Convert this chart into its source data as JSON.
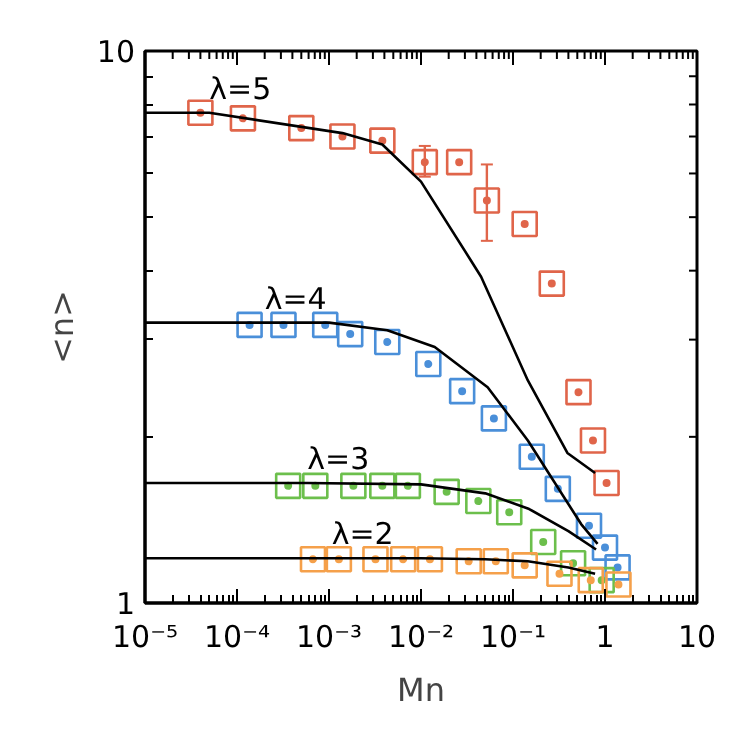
{
  "chart_data": {
    "type": "scatter",
    "xlabel": "Mn",
    "ylabel": "<n>",
    "log": "xy",
    "grid": false,
    "marker": "square",
    "xlim": [
      1e-05,
      10
    ],
    "ylim": [
      1,
      10
    ],
    "xticks": [
      {
        "value": 1e-05,
        "label": "10⁻⁵"
      },
      {
        "value": 0.0001,
        "label": "10⁻⁴"
      },
      {
        "value": 0.001,
        "label": "10⁻³"
      },
      {
        "value": 0.01,
        "label": "10⁻²"
      },
      {
        "value": 0.1,
        "label": "10⁻¹"
      },
      1,
      10
    ],
    "yticks": [
      1,
      10
    ],
    "series": [
      {
        "color": "#e0654a",
        "x": [
          4e-05,
          0.000116,
          0.0005,
          0.0014,
          0.0038,
          0.011,
          0.026,
          0.052,
          0.134,
          0.264,
          0.515,
          0.74,
          1.04
        ],
        "values": [
          7.73,
          7.55,
          7.25,
          7.0,
          6.88,
          6.29,
          6.29,
          5.36,
          4.86,
          3.79,
          2.41,
          1.97,
          1.65
        ],
        "errors": [
          null,
          null,
          null,
          null,
          null,
          [
            5.92,
            6.73
          ],
          null,
          [
            4.53,
            6.23
          ],
          null,
          null,
          null,
          null,
          null
        ]
      },
      {
        "color": "#4a8fd9",
        "x": [
          0.000137,
          0.00032,
          0.00091,
          0.0017,
          0.0043,
          0.012,
          0.028,
          0.062,
          0.16,
          0.307,
          0.67,
          1.0,
          1.37
        ],
        "values": [
          3.19,
          3.19,
          3.19,
          3.07,
          2.97,
          2.71,
          2.42,
          2.16,
          1.84,
          1.61,
          1.38,
          1.26,
          1.16
        ]
      },
      {
        "color": "#6cbf4c",
        "x": [
          0.00036,
          0.00071,
          0.00184,
          0.0038,
          0.0072,
          0.019,
          0.042,
          0.091,
          0.213,
          0.45,
          0.92
        ],
        "values": [
          1.63,
          1.63,
          1.63,
          1.63,
          1.63,
          1.59,
          1.53,
          1.46,
          1.29,
          1.18,
          1.1
        ]
      },
      {
        "color": "#f5a04a",
        "x": [
          0.00067,
          0.00128,
          0.0032,
          0.0064,
          0.0125,
          0.033,
          0.065,
          0.134,
          0.32,
          0.7,
          1.4
        ],
        "values": [
          1.2,
          1.2,
          1.2,
          1.2,
          1.2,
          1.19,
          1.19,
          1.17,
          1.13,
          1.1,
          1.08
        ]
      },
      {
        "type": "line",
        "marker": "none",
        "name": "λ=5",
        "color": "#000000",
        "x": [
          1e-05,
          5e-05,
          0.0014,
          0.0038,
          0.01,
          0.035,
          0.045,
          0.145,
          0.39,
          0.78
        ],
        "values": [
          7.73,
          7.73,
          7.1,
          6.77,
          5.8,
          4.17,
          3.9,
          2.53,
          1.87,
          1.72
        ]
      },
      {
        "type": "line",
        "marker": "none",
        "name": "λ=4",
        "color": "#000000",
        "x": [
          1e-05,
          0.0002,
          0.001,
          0.0043,
          0.0141,
          0.053,
          0.145,
          0.55,
          0.83
        ],
        "values": [
          3.22,
          3.22,
          3.22,
          3.12,
          2.91,
          2.46,
          1.97,
          1.39,
          1.28
        ]
      },
      {
        "type": "line",
        "marker": "none",
        "name": "λ=3",
        "color": "#000000",
        "x": [
          1e-05,
          0.00058,
          0.01,
          0.05,
          0.15,
          0.4,
          0.8
        ],
        "values": [
          1.65,
          1.65,
          1.64,
          1.58,
          1.48,
          1.35,
          1.25
        ]
      },
      {
        "type": "line",
        "marker": "none",
        "name": "λ=2",
        "color": "#000000",
        "x": [
          1e-05,
          0.00107,
          0.01,
          0.05,
          0.145,
          0.4,
          0.78
        ],
        "values": [
          1.205,
          1.205,
          1.205,
          1.2,
          1.19,
          1.16,
          1.13
        ]
      }
    ]
  }
}
